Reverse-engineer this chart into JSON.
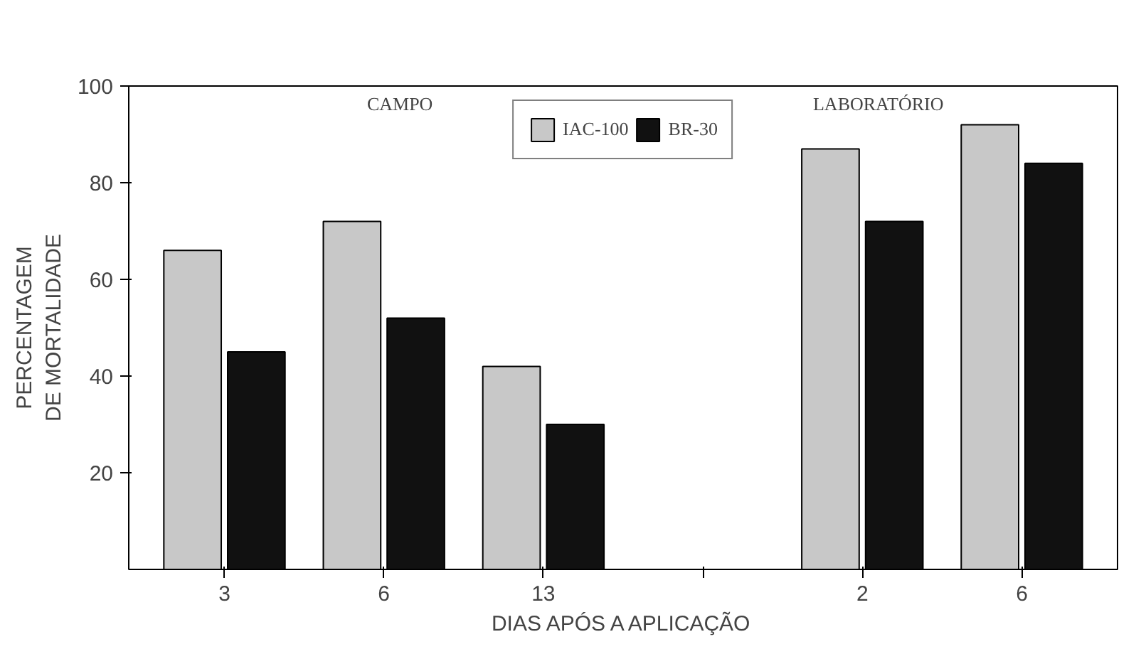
{
  "chart_data": {
    "type": "bar",
    "xlabel": "DIAS APÓS A APLICAÇÃO",
    "ylabel": "PERCENTAGEM\nDE MORTALIDADE",
    "categories": [
      "3",
      "6",
      "13",
      null,
      "2",
      "6"
    ],
    "series": [
      {
        "name": "IAC-100",
        "color": "#c8c8c8",
        "values": [
          66,
          72,
          42,
          null,
          87,
          92
        ]
      },
      {
        "name": "BR-30",
        "color": "#111111",
        "values": [
          45,
          52,
          30,
          null,
          72,
          84
        ]
      }
    ],
    "ylim": [
      0,
      100
    ],
    "yticks": [
      20,
      40,
      60,
      80,
      100
    ],
    "annotations": [
      "CAMPO",
      "LABORATÓRIO"
    ],
    "legend": "top",
    "grid": false
  }
}
